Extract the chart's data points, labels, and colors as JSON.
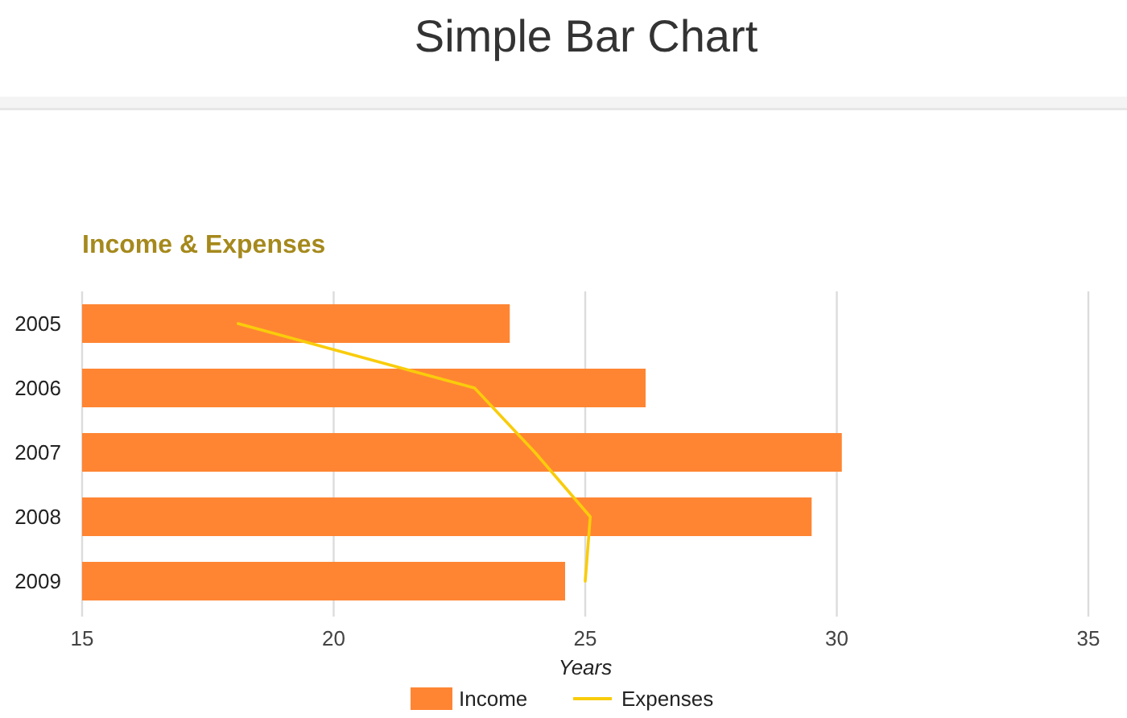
{
  "chart_data": {
    "type": "bar",
    "title": "Simple Bar Chart",
    "subtitle": "Income & Expenses",
    "xlabel": "Years",
    "orientation": "horizontal",
    "categories": [
      "2005",
      "2006",
      "2007",
      "2008",
      "2009"
    ],
    "series": [
      {
        "name": "Income",
        "color": "#ff8533",
        "values": [
          23.5,
          26.2,
          30.1,
          29.5,
          24.6
        ]
      },
      {
        "name": "Expenses",
        "type": "line",
        "color": "#f9cc0b",
        "values": [
          18.1,
          22.8,
          24.0,
          25.1,
          25.0
        ]
      }
    ],
    "xlim": [
      15,
      35
    ],
    "xticks": [
      15,
      20,
      25,
      30,
      35
    ],
    "grid": "x",
    "legend": "bottom"
  }
}
